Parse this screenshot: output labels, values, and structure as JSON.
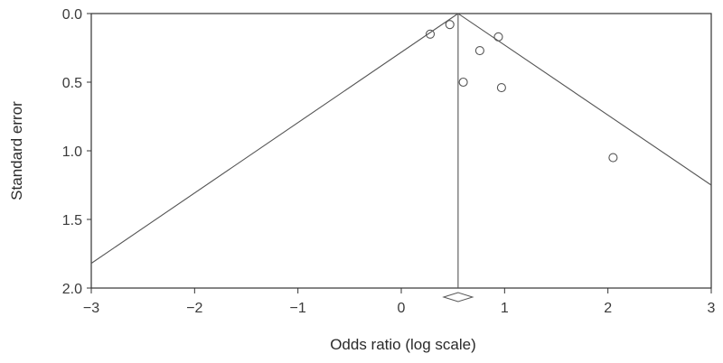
{
  "chart_data": {
    "type": "scatter",
    "title": "",
    "xlabel": "Odds ratio (log scale)",
    "ylabel": "Standard error",
    "xlim": [
      -3,
      3
    ],
    "ylim": [
      2.0,
      0.0
    ],
    "y_inverted": true,
    "grid": false,
    "legend": "none",
    "x_ticks": [
      "−3",
      "−2",
      "−1",
      "0",
      "1",
      "2",
      "3"
    ],
    "x_tick_values": [
      -3,
      -2,
      -1,
      0,
      1,
      2,
      3
    ],
    "y_ticks": [
      "0.0",
      "0.5",
      "1.0",
      "1.5",
      "2.0"
    ],
    "y_tick_values": [
      0.0,
      0.5,
      1.0,
      1.5,
      2.0
    ],
    "pooled_estimate": 0.55,
    "funnel_lines": [
      {
        "x": [
          0.55,
          -3.0
        ],
        "y": [
          0.0,
          1.82
        ]
      },
      {
        "x": [
          0.55,
          3.0
        ],
        "y": [
          0.0,
          1.25
        ]
      }
    ],
    "points": [
      {
        "x": 0.28,
        "y": 0.15
      },
      {
        "x": 0.47,
        "y": 0.08
      },
      {
        "x": 0.94,
        "y": 0.17
      },
      {
        "x": 0.76,
        "y": 0.27
      },
      {
        "x": 0.6,
        "y": 0.5
      },
      {
        "x": 0.97,
        "y": 0.54
      },
      {
        "x": 2.05,
        "y": 1.05
      }
    ],
    "colors": {
      "line": "#555555",
      "marker": "#555555",
      "axis": "#333333"
    }
  }
}
